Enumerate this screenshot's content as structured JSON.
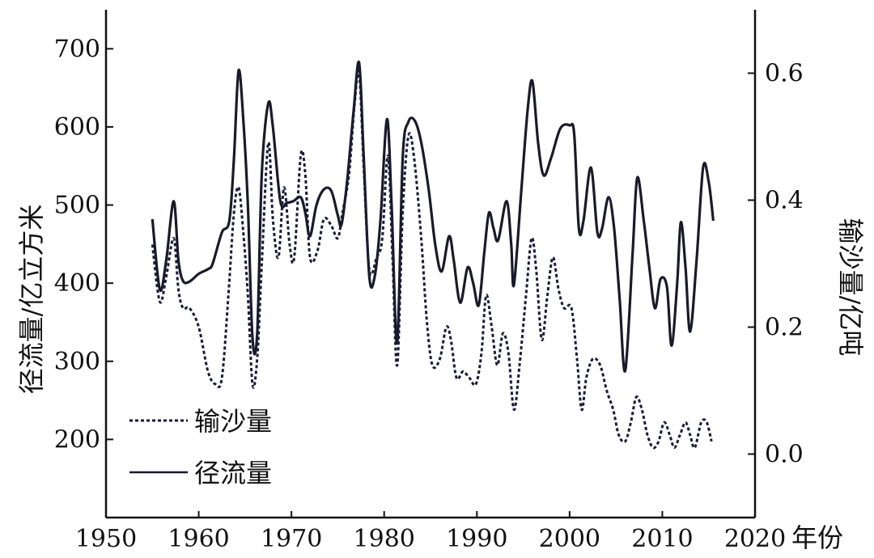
{
  "chart_data": {
    "type": "line",
    "x_axis": {
      "label": "年份",
      "range": [
        1950,
        2020
      ],
      "ticks": [
        "1950",
        "1960",
        "1970",
        "1980",
        "1990",
        "2000",
        "2010",
        "2020"
      ]
    },
    "y_left": {
      "label": "径流量/亿立方米",
      "range": [
        100,
        750
      ],
      "ticks": [
        "200",
        "300",
        "400",
        "500",
        "600",
        "700"
      ]
    },
    "y_right": {
      "label": "输沙量/亿吨",
      "range": [
        -0.1,
        0.7
      ],
      "ticks": [
        "0.0",
        "0.2",
        "0.4",
        "0.6"
      ]
    },
    "grid": false,
    "legend_position": "bottom-left",
    "series": [
      {
        "name": "径流量",
        "axis": "left",
        "style": "solid",
        "color": "#1a1a2a",
        "points": [
          [
            1955,
            482
          ],
          [
            1955.8,
            392
          ],
          [
            1956.5,
            430
          ],
          [
            1957.3,
            505
          ],
          [
            1957.8,
            430
          ],
          [
            1958.3,
            403
          ],
          [
            1959,
            402
          ],
          [
            1960,
            412
          ],
          [
            1961,
            418
          ],
          [
            1961.5,
            425
          ],
          [
            1962.5,
            465
          ],
          [
            1963.3,
            480
          ],
          [
            1963.8,
            560
          ],
          [
            1964.3,
            672
          ],
          [
            1964.8,
            610
          ],
          [
            1965.3,
            500
          ],
          [
            1965.8,
            330
          ],
          [
            1966.3,
            335
          ],
          [
            1966.8,
            540
          ],
          [
            1967.5,
            630
          ],
          [
            1968,
            600
          ],
          [
            1968.8,
            505
          ],
          [
            1969.5,
            503
          ],
          [
            1970.2,
            505
          ],
          [
            1971,
            510
          ],
          [
            1971.5,
            490
          ],
          [
            1972,
            460
          ],
          [
            1972.7,
            500
          ],
          [
            1973.5,
            520
          ],
          [
            1974.3,
            518
          ],
          [
            1975,
            487
          ],
          [
            1975.4,
            475
          ],
          [
            1976,
            530
          ],
          [
            1976.7,
            620
          ],
          [
            1977.3,
            682
          ],
          [
            1977.8,
            560
          ],
          [
            1978.4,
            408
          ],
          [
            1979,
            410
          ],
          [
            1979.6,
            480
          ],
          [
            1980.3,
            610
          ],
          [
            1980.8,
            500
          ],
          [
            1981.4,
            323
          ],
          [
            1982,
            560
          ],
          [
            1982.6,
            606
          ],
          [
            1983.3,
            608
          ],
          [
            1984,
            580
          ],
          [
            1984.8,
            520
          ],
          [
            1985.5,
            450
          ],
          [
            1986.2,
            415
          ],
          [
            1987,
            460
          ],
          [
            1987.5,
            430
          ],
          [
            1988.2,
            375
          ],
          [
            1989,
            420
          ],
          [
            1989.6,
            400
          ],
          [
            1990.2,
            372
          ],
          [
            1990.8,
            440
          ],
          [
            1991.3,
            490
          ],
          [
            1991.8,
            470
          ],
          [
            1992.3,
            455
          ],
          [
            1993.2,
            505
          ],
          [
            1993.7,
            450
          ],
          [
            1994,
            398
          ],
          [
            1994.8,
            520
          ],
          [
            1995.5,
            625
          ],
          [
            1996,
            658
          ],
          [
            1996.6,
            580
          ],
          [
            1997.2,
            538
          ],
          [
            1998,
            560
          ],
          [
            1999,
            598
          ],
          [
            2000,
            602
          ],
          [
            2000.5,
            590
          ],
          [
            2001,
            470
          ],
          [
            2001.5,
            480
          ],
          [
            2002.3,
            548
          ],
          [
            2003,
            465
          ],
          [
            2003.5,
            470
          ],
          [
            2004.2,
            510
          ],
          [
            2004.8,
            470
          ],
          [
            2005.4,
            380
          ],
          [
            2006,
            288
          ],
          [
            2006.8,
            440
          ],
          [
            2007.3,
            535
          ],
          [
            2008,
            480
          ],
          [
            2008.6,
            420
          ],
          [
            2009.2,
            368
          ],
          [
            2009.8,
            405
          ],
          [
            2010.5,
            395
          ],
          [
            2011,
            320
          ],
          [
            2011.6,
            400
          ],
          [
            2012,
            478
          ],
          [
            2012.5,
            420
          ],
          [
            2013,
            338
          ],
          [
            2013.7,
            430
          ],
          [
            2014.4,
            548
          ],
          [
            2015,
            530
          ],
          [
            2015.5,
            480
          ]
        ]
      },
      {
        "name": "输沙量",
        "axis": "right",
        "style": "dotted",
        "color": "#1a1a3a",
        "points": [
          [
            1955,
            0.33
          ],
          [
            1955.8,
            0.24
          ],
          [
            1956.5,
            0.28
          ],
          [
            1957.3,
            0.34
          ],
          [
            1957.8,
            0.26
          ],
          [
            1958.3,
            0.23
          ],
          [
            1959,
            0.23
          ],
          [
            1960,
            0.2
          ],
          [
            1961,
            0.13
          ],
          [
            1961.8,
            0.11
          ],
          [
            1962.5,
            0.12
          ],
          [
            1963.2,
            0.25
          ],
          [
            1963.8,
            0.38
          ],
          [
            1964.3,
            0.42
          ],
          [
            1964.8,
            0.35
          ],
          [
            1965.3,
            0.25
          ],
          [
            1965.8,
            0.11
          ],
          [
            1966.3,
            0.15
          ],
          [
            1966.8,
            0.3
          ],
          [
            1967.5,
            0.49
          ],
          [
            1968,
            0.37
          ],
          [
            1968.6,
            0.31
          ],
          [
            1969.2,
            0.42
          ],
          [
            1969.8,
            0.33
          ],
          [
            1970.3,
            0.31
          ],
          [
            1971,
            0.47
          ],
          [
            1971.5,
            0.44
          ],
          [
            1972,
            0.31
          ],
          [
            1972.8,
            0.32
          ],
          [
            1973.5,
            0.37
          ],
          [
            1974.3,
            0.36
          ],
          [
            1975,
            0.34
          ],
          [
            1975.5,
            0.38
          ],
          [
            1976.2,
            0.44
          ],
          [
            1976.8,
            0.55
          ],
          [
            1977.3,
            0.6
          ],
          [
            1977.8,
            0.45
          ],
          [
            1978.4,
            0.29
          ],
          [
            1979.2,
            0.31
          ],
          [
            1979.8,
            0.34
          ],
          [
            1980.4,
            0.47
          ],
          [
            1980.9,
            0.31
          ],
          [
            1981.4,
            0.14
          ],
          [
            1982,
            0.38
          ],
          [
            1982.6,
            0.5
          ],
          [
            1983.2,
            0.47
          ],
          [
            1984,
            0.34
          ],
          [
            1984.6,
            0.21
          ],
          [
            1985.2,
            0.14
          ],
          [
            1986,
            0.15
          ],
          [
            1986.7,
            0.2
          ],
          [
            1987.2,
            0.18
          ],
          [
            1987.8,
            0.12
          ],
          [
            1988.5,
            0.13
          ],
          [
            1989.2,
            0.12
          ],
          [
            1989.9,
            0.11
          ],
          [
            1990.5,
            0.16
          ],
          [
            1991,
            0.25
          ],
          [
            1991.6,
            0.2
          ],
          [
            1992.2,
            0.14
          ],
          [
            1992.8,
            0.19
          ],
          [
            1993.4,
            0.16
          ],
          [
            1994,
            0.07
          ],
          [
            1994.6,
            0.14
          ],
          [
            1995.3,
            0.25
          ],
          [
            1995.9,
            0.34
          ],
          [
            1996.4,
            0.29
          ],
          [
            1997,
            0.18
          ],
          [
            1997.6,
            0.25
          ],
          [
            1998.2,
            0.31
          ],
          [
            1998.8,
            0.26
          ],
          [
            1999.4,
            0.23
          ],
          [
            2000.2,
            0.23
          ],
          [
            2000.8,
            0.15
          ],
          [
            2001.3,
            0.07
          ],
          [
            2001.8,
            0.12
          ],
          [
            2002.5,
            0.15
          ],
          [
            2003.3,
            0.14
          ],
          [
            2004,
            0.1
          ],
          [
            2004.7,
            0.07
          ],
          [
            2005.3,
            0.03
          ],
          [
            2006,
            0.02
          ],
          [
            2006.6,
            0.05
          ],
          [
            2007.2,
            0.09
          ],
          [
            2007.8,
            0.07
          ],
          [
            2008.4,
            0.03
          ],
          [
            2009,
            0.01
          ],
          [
            2009.6,
            0.02
          ],
          [
            2010.2,
            0.05
          ],
          [
            2010.8,
            0.03
          ],
          [
            2011.3,
            0.01
          ],
          [
            2011.9,
            0.03
          ],
          [
            2012.5,
            0.05
          ],
          [
            2013,
            0.03
          ],
          [
            2013.5,
            0.01
          ],
          [
            2014.2,
            0.05
          ],
          [
            2014.8,
            0.05
          ],
          [
            2015.3,
            0.02
          ]
        ]
      }
    ],
    "legend": [
      {
        "label": "输沙量",
        "style": "dotted"
      },
      {
        "label": "径流量",
        "style": "solid"
      }
    ]
  }
}
